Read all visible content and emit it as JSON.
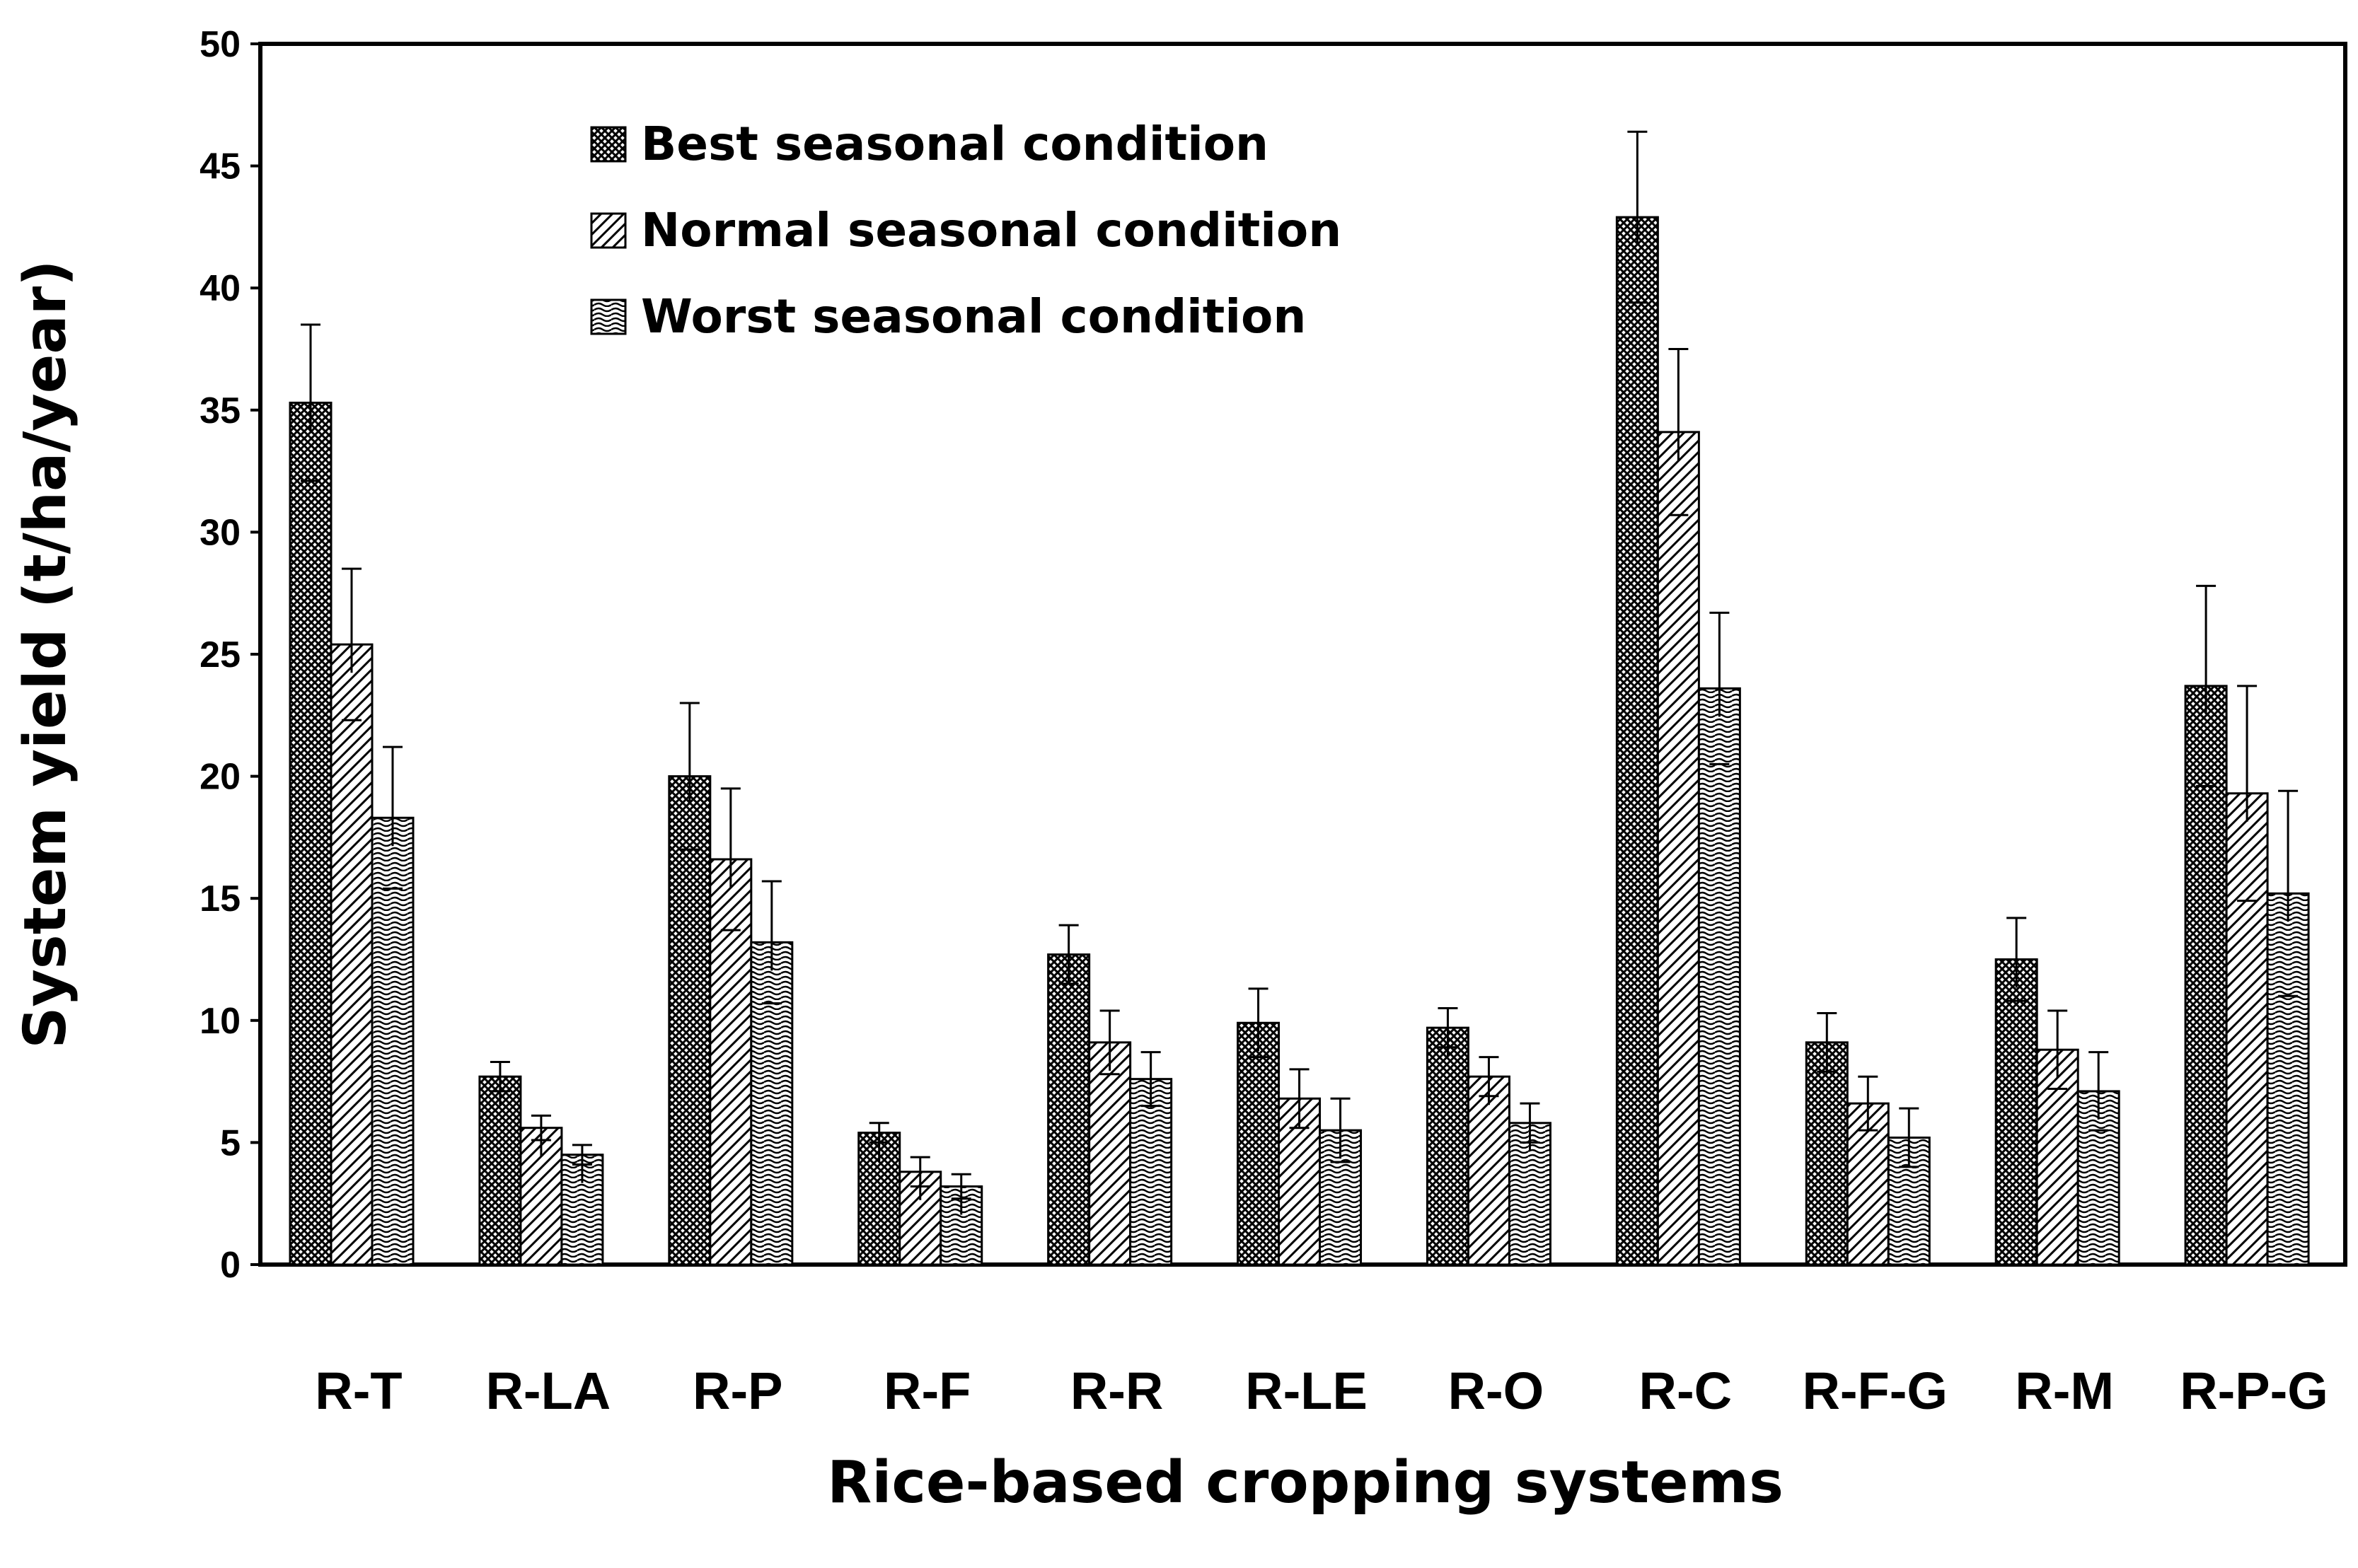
{
  "chart_data": {
    "type": "bar",
    "title": "",
    "xlabel": "Rice-based cropping systems",
    "ylabel": "System yield (t/ha/year)",
    "ylim": [
      0,
      50
    ],
    "yticks": [
      0,
      5,
      10,
      15,
      20,
      25,
      30,
      35,
      40,
      45,
      50
    ],
    "categories": [
      "R-T",
      "R-LA",
      "R-P",
      "R-F",
      "R-R",
      "R-LE",
      "R-O",
      "R-C",
      "R-F-G",
      "R-M",
      "R-P-G"
    ],
    "series": [
      {
        "name": "Best seasonal condition",
        "pattern": "crosshatch",
        "values": [
          35.3,
          7.7,
          20.0,
          5.4,
          12.7,
          9.9,
          9.7,
          42.9,
          9.1,
          12.5,
          23.7
        ],
        "error": [
          3.2,
          0.6,
          3.0,
          0.4,
          1.2,
          1.4,
          0.8,
          3.5,
          1.2,
          1.7,
          4.1
        ]
      },
      {
        "name": "Normal seasonal condition",
        "pattern": "diagonal",
        "values": [
          25.4,
          5.6,
          16.6,
          3.8,
          9.1,
          6.8,
          7.7,
          34.1,
          6.6,
          8.8,
          19.3
        ],
        "error": [
          3.1,
          0.5,
          2.9,
          0.6,
          1.3,
          1.2,
          0.8,
          3.4,
          1.1,
          1.6,
          4.4
        ]
      },
      {
        "name": "Worst seasonal condition",
        "pattern": "wave",
        "values": [
          18.3,
          4.5,
          13.2,
          3.2,
          7.6,
          5.5,
          5.8,
          23.6,
          5.2,
          7.1,
          15.2
        ],
        "error": [
          2.9,
          0.4,
          2.5,
          0.5,
          1.1,
          1.3,
          0.8,
          3.1,
          1.2,
          1.6,
          4.2
        ]
      }
    ],
    "grid": false,
    "legend_position": "top-left"
  }
}
